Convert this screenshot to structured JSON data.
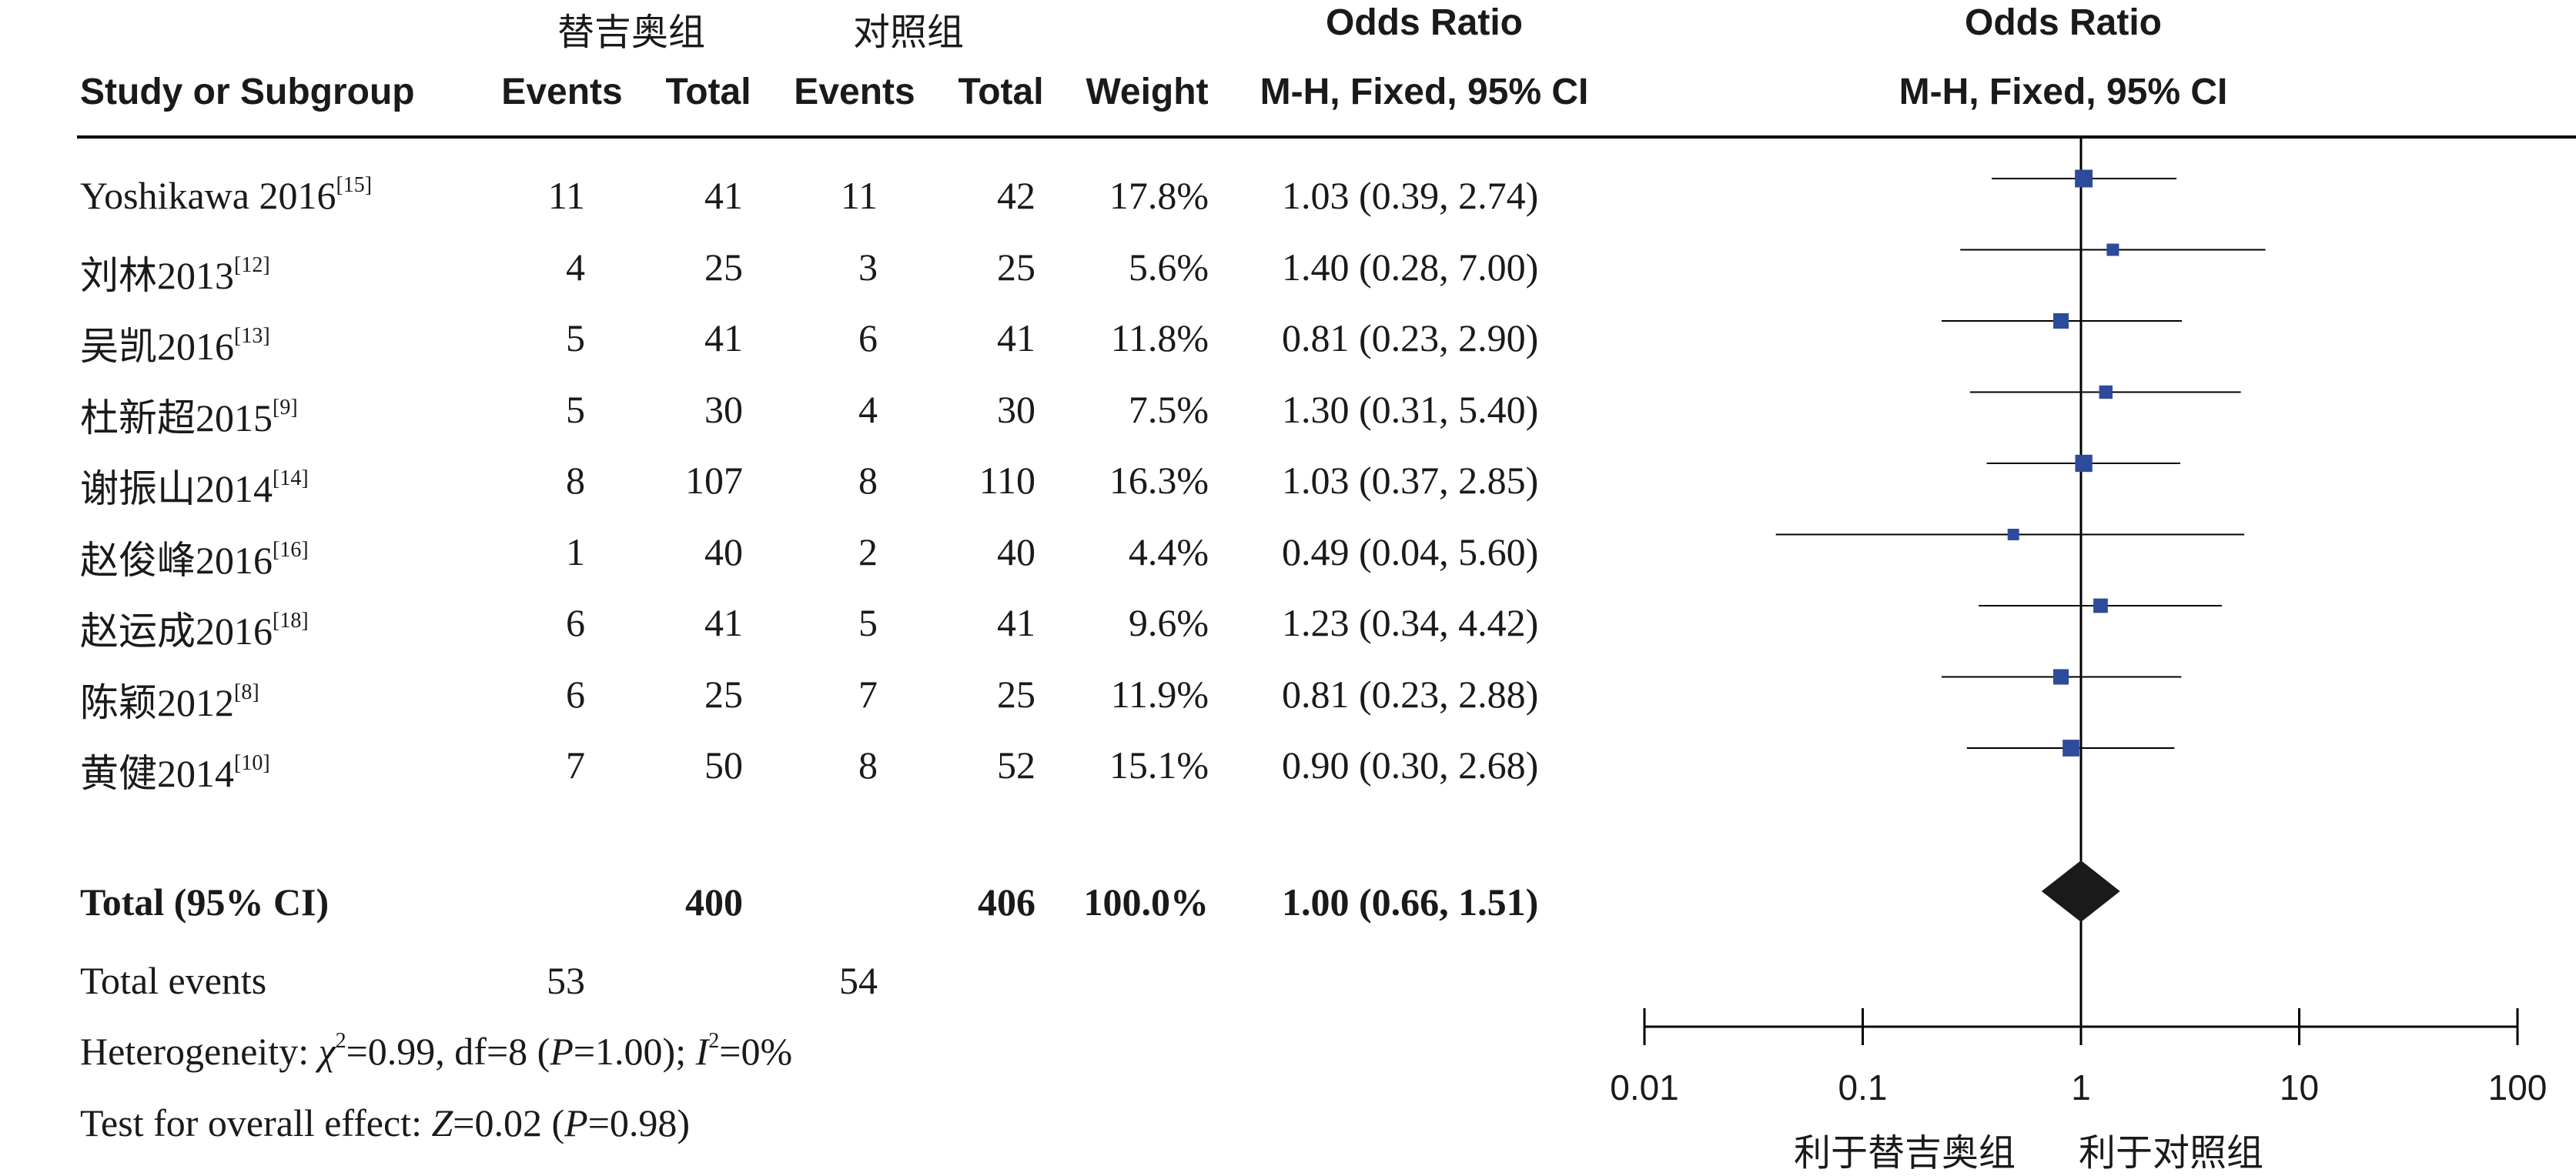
{
  "headers": {
    "group_exp": "替吉奥组",
    "group_ctl": "对照组",
    "or_left": "Odds Ratio",
    "or_right": "Odds Ratio",
    "study": "Study or Subgroup",
    "events_exp": "Events",
    "total_exp": "Total",
    "events_ctl": "Events",
    "total_ctl": "Total",
    "weight": "Weight",
    "method_left": "M-H, Fixed, 95% CI",
    "method_right": "M-H, Fixed, 95% CI"
  },
  "studies": [
    {
      "name": "Yoshikawa 2016",
      "ref": "[15]",
      "e1": "11",
      "t1": "41",
      "e2": "11",
      "t2": "42",
      "weight": "17.8%",
      "ci_text": "1.03 (0.39, 2.74)"
    },
    {
      "name": "刘林2013",
      "ref": "[12]",
      "e1": "4",
      "t1": "25",
      "e2": "3",
      "t2": "25",
      "weight": "5.6%",
      "ci_text": "1.40 (0.28, 7.00)"
    },
    {
      "name": "吴凯2016",
      "ref": "[13]",
      "e1": "5",
      "t1": "41",
      "e2": "6",
      "t2": "41",
      "weight": "11.8%",
      "ci_text": "0.81 (0.23, 2.90)"
    },
    {
      "name": "杜新超2015",
      "ref": "[9]",
      "e1": "5",
      "t1": "30",
      "e2": "4",
      "t2": "30",
      "weight": "7.5%",
      "ci_text": "1.30 (0.31, 5.40)"
    },
    {
      "name": "谢振山2014",
      "ref": "[14]",
      "e1": "8",
      "t1": "107",
      "e2": "8",
      "t2": "110",
      "weight": "16.3%",
      "ci_text": "1.03 (0.37, 2.85)"
    },
    {
      "name": "赵俊峰2016",
      "ref": "[16]",
      "e1": "1",
      "t1": "40",
      "e2": "2",
      "t2": "40",
      "weight": "4.4%",
      "ci_text": "0.49 (0.04, 5.60)"
    },
    {
      "name": "赵运成2016",
      "ref": "[18]",
      "e1": "6",
      "t1": "41",
      "e2": "5",
      "t2": "41",
      "weight": "9.6%",
      "ci_text": "1.23 (0.34, 4.42)"
    },
    {
      "name": "陈颖2012",
      "ref": "[8]",
      "e1": "6",
      "t1": "25",
      "e2": "7",
      "t2": "25",
      "weight": "11.9%",
      "ci_text": "0.81 (0.23, 2.88)"
    },
    {
      "name": "黄健2014",
      "ref": "[10]",
      "e1": "7",
      "t1": "50",
      "e2": "8",
      "t2": "52",
      "weight": "15.1%",
      "ci_text": "0.90 (0.30, 2.68)"
    }
  ],
  "total": {
    "label": "Total (95% CI)",
    "t1": "400",
    "t2": "406",
    "weight": "100.0%",
    "ci_text": "1.00 (0.66, 1.51)"
  },
  "events": {
    "label": "Total events",
    "e1": "53",
    "e2": "54"
  },
  "heterogeneity": {
    "prefix": "Heterogeneity: ",
    "chi_sym": "χ",
    "chi_sup": "2",
    "chi_rest": "=0.99, df=8 (",
    "p_sym": "P",
    "p_rest": "=1.00); ",
    "i_sym": "I",
    "i_sup": "2",
    "i_rest": "=0%"
  },
  "overall": {
    "prefix": "Test for overall effect: ",
    "z_sym": "Z",
    "z_rest": "=0.02 (",
    "p_sym": "P",
    "p_rest": "=0.98)"
  },
  "favours": {
    "left": "利于替吉奥组",
    "right": "利于对照组"
  },
  "chart_data": {
    "type": "forest",
    "scale": "log",
    "xlim": [
      0.01,
      100
    ],
    "x_ticks": [
      0.01,
      0.1,
      1,
      10,
      100
    ],
    "x_tick_labels": [
      "0.01",
      "0.1",
      "1",
      "10",
      "100"
    ],
    "title": "Odds Ratio",
    "subtitle": "M-H, Fixed, 95% CI",
    "marker_color": "#2e4b9b",
    "diamond_color": "#1a1a1a",
    "studies": [
      {
        "or": 1.03,
        "lo": 0.39,
        "hi": 2.74,
        "weight": 17.8
      },
      {
        "or": 1.4,
        "lo": 0.28,
        "hi": 7.0,
        "weight": 5.6
      },
      {
        "or": 0.81,
        "lo": 0.23,
        "hi": 2.9,
        "weight": 11.8
      },
      {
        "or": 1.3,
        "lo": 0.31,
        "hi": 5.4,
        "weight": 7.5
      },
      {
        "or": 1.03,
        "lo": 0.37,
        "hi": 2.85,
        "weight": 16.3
      },
      {
        "or": 0.49,
        "lo": 0.04,
        "hi": 5.6,
        "weight": 4.4
      },
      {
        "or": 1.23,
        "lo": 0.34,
        "hi": 4.42,
        "weight": 9.6
      },
      {
        "or": 0.81,
        "lo": 0.23,
        "hi": 2.88,
        "weight": 11.9
      },
      {
        "or": 0.9,
        "lo": 0.3,
        "hi": 2.68,
        "weight": 15.1
      }
    ],
    "pooled": {
      "or": 1.0,
      "lo": 0.66,
      "hi": 1.51
    }
  }
}
